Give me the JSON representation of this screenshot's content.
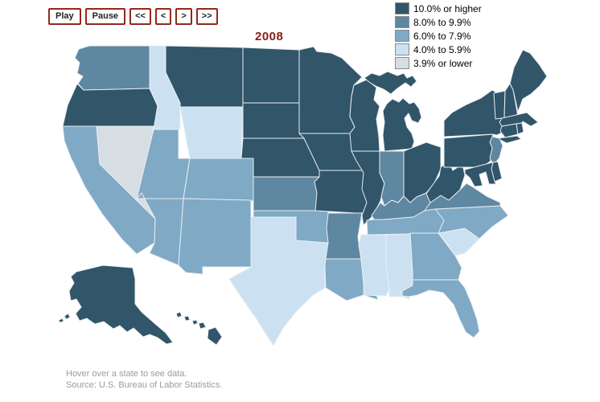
{
  "controls": {
    "play": "Play",
    "pause": "Pause",
    "rewind": "<<",
    "step_back": "<",
    "step_forward": ">",
    "fast_forward": ">>"
  },
  "year": "2008",
  "legend": {
    "items": [
      {
        "label": "10.0% or higher",
        "color": "#315569"
      },
      {
        "label": "8.0% to 9.9%",
        "color": "#5e87a1"
      },
      {
        "label": "6.0% to 7.9%",
        "color": "#7fa9c5"
      },
      {
        "label": "4.0% to 5.9%",
        "color": "#cbe1f1"
      },
      {
        "label": "3.9% or lower",
        "color": "#d6dee4"
      }
    ]
  },
  "footer": {
    "line1": "Hover over a state to see data.",
    "line2": "Source: U.S. Bureau of Labor Statistics."
  },
  "map": {
    "border_color": "#e9eef2",
    "states": [
      {
        "id": "WA",
        "name": "Washington",
        "category": "8.0% to 9.9%"
      },
      {
        "id": "OR",
        "name": "Oregon",
        "category": "10.0% or higher"
      },
      {
        "id": "CA",
        "name": "California",
        "category": "6.0% to 7.9%"
      },
      {
        "id": "NV",
        "name": "Nevada",
        "category": "3.9% or lower"
      },
      {
        "id": "ID",
        "name": "Idaho",
        "category": "4.0% to 5.9%"
      },
      {
        "id": "MT",
        "name": "Montana",
        "category": "10.0% or higher"
      },
      {
        "id": "WY",
        "name": "Wyoming",
        "category": "4.0% to 5.9%"
      },
      {
        "id": "UT",
        "name": "Utah",
        "category": "6.0% to 7.9%"
      },
      {
        "id": "CO",
        "name": "Colorado",
        "category": "6.0% to 7.9%"
      },
      {
        "id": "AZ",
        "name": "Arizona",
        "category": "6.0% to 7.9%"
      },
      {
        "id": "NM",
        "name": "New Mexico",
        "category": "6.0% to 7.9%"
      },
      {
        "id": "ND",
        "name": "North Dakota",
        "category": "10.0% or higher"
      },
      {
        "id": "SD",
        "name": "South Dakota",
        "category": "10.0% or higher"
      },
      {
        "id": "NE",
        "name": "Nebraska",
        "category": "10.0% or higher"
      },
      {
        "id": "KS",
        "name": "Kansas",
        "category": "8.0% to 9.9%"
      },
      {
        "id": "OK",
        "name": "Oklahoma",
        "category": "6.0% to 7.9%"
      },
      {
        "id": "TX",
        "name": "Texas",
        "category": "4.0% to 5.9%"
      },
      {
        "id": "MN",
        "name": "Minnesota",
        "category": "10.0% or higher"
      },
      {
        "id": "IA",
        "name": "Iowa",
        "category": "10.0% or higher"
      },
      {
        "id": "MO",
        "name": "Missouri",
        "category": "10.0% or higher"
      },
      {
        "id": "AR",
        "name": "Arkansas",
        "category": "8.0% to 9.9%"
      },
      {
        "id": "LA",
        "name": "Louisiana",
        "category": "6.0% to 7.9%"
      },
      {
        "id": "WI",
        "name": "Wisconsin",
        "category": "10.0% or higher"
      },
      {
        "id": "IL",
        "name": "Illinois",
        "category": "10.0% or higher"
      },
      {
        "id": "MS",
        "name": "Mississippi",
        "category": "4.0% to 5.9%"
      },
      {
        "id": "AL",
        "name": "Alabama",
        "category": "4.0% to 5.9%"
      },
      {
        "id": "MI",
        "name": "Michigan",
        "category": "10.0% or higher"
      },
      {
        "id": "IN",
        "name": "Indiana",
        "category": "8.0% to 9.9%"
      },
      {
        "id": "OH",
        "name": "Ohio",
        "category": "10.0% or higher"
      },
      {
        "id": "KY",
        "name": "Kentucky",
        "category": "8.0% to 9.9%"
      },
      {
        "id": "TN",
        "name": "Tennessee",
        "category": "6.0% to 7.9%"
      },
      {
        "id": "GA",
        "name": "Georgia",
        "category": "6.0% to 7.9%"
      },
      {
        "id": "FL",
        "name": "Florida",
        "category": "6.0% to 7.9%"
      },
      {
        "id": "SC",
        "name": "South Carolina",
        "category": "4.0% to 5.9%"
      },
      {
        "id": "NC",
        "name": "North Carolina",
        "category": "6.0% to 7.9%"
      },
      {
        "id": "VA",
        "name": "Virginia",
        "category": "8.0% to 9.9%"
      },
      {
        "id": "WV",
        "name": "West Virginia",
        "category": "10.0% or higher"
      },
      {
        "id": "PA",
        "name": "Pennsylvania",
        "category": "10.0% or higher"
      },
      {
        "id": "NY",
        "name": "New York",
        "category": "10.0% or higher"
      },
      {
        "id": "ME",
        "name": "Maine",
        "category": "10.0% or higher"
      },
      {
        "id": "VT",
        "name": "Vermont",
        "category": "10.0% or higher"
      },
      {
        "id": "NH",
        "name": "New Hampshire",
        "category": "10.0% or higher"
      },
      {
        "id": "MA",
        "name": "Massachusetts",
        "category": "10.0% or higher"
      },
      {
        "id": "CT",
        "name": "Connecticut",
        "category": "10.0% or higher"
      },
      {
        "id": "RI",
        "name": "Rhode Island",
        "category": "10.0% or higher"
      },
      {
        "id": "NJ",
        "name": "New Jersey",
        "category": "8.0% to 9.9%"
      },
      {
        "id": "MD",
        "name": "Maryland",
        "category": "10.0% or higher"
      },
      {
        "id": "DE",
        "name": "Delaware",
        "category": "10.0% or higher"
      },
      {
        "id": "AK",
        "name": "Alaska",
        "category": "10.0% or higher"
      },
      {
        "id": "HI",
        "name": "Hawaii",
        "category": "10.0% or higher"
      }
    ]
  }
}
